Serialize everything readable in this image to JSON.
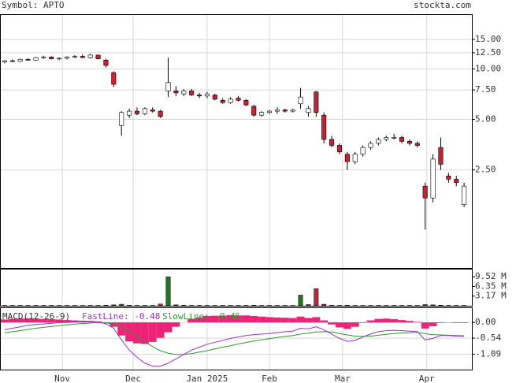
{
  "header": {
    "symbol": "Symbol: APTO",
    "site": "stockta.com"
  },
  "chart_data": {
    "type": "candlestick",
    "log_scale": true,
    "ylim": [
      0.65,
      21
    ],
    "yticks": [
      {
        "value": 15,
        "label": "15.00"
      },
      {
        "value": 12.5,
        "label": "12.50"
      },
      {
        "value": 10,
        "label": "10.00"
      },
      {
        "value": 7.5,
        "label": "7.50"
      },
      {
        "value": 5,
        "label": "5.00"
      },
      {
        "value": 2.5,
        "label": "2.50"
      }
    ],
    "xlim": [
      -0.5,
      60
    ],
    "xticks": [
      {
        "value": 7.4,
        "label": "Nov"
      },
      {
        "value": 16.5,
        "label": "Dec"
      },
      {
        "value": 26,
        "label": "Jan 2025"
      },
      {
        "value": 34,
        "label": "Feb"
      },
      {
        "value": 43.4,
        "label": "Mar"
      },
      {
        "value": 54.2,
        "label": "Apr"
      }
    ],
    "grid": true,
    "up_color": "#ffffff",
    "down_color": "#cc1f2f",
    "open": [
      11.0,
      11.2,
      11.1,
      11.4,
      11.3,
      11.7,
      11.8,
      11.5,
      11.6,
      11.8,
      11.9,
      11.7,
      12.1,
      11.3,
      9.5,
      4.6,
      5.3,
      5.6,
      5.4,
      5.7,
      5.6,
      7.4,
      7.4,
      7.1,
      7.4,
      7.0,
      6.9,
      7.0,
      6.5,
      6.3,
      6.7,
      6.5,
      6.0,
      5.3,
      5.5,
      5.6,
      5.7,
      5.6,
      6.2,
      5.5,
      7.3,
      5.3,
      3.8,
      3.5,
      3.1,
      2.8,
      3.1,
      3.4,
      3.6,
      3.8,
      3.9,
      3.9,
      3.7,
      3.6,
      2.0,
      1.7,
      3.4,
      2.3,
      2.2,
      1.55
    ],
    "high": [
      11.3,
      11.4,
      11.5,
      11.6,
      11.8,
      12.0,
      11.9,
      11.7,
      11.9,
      12.1,
      12.2,
      12.3,
      12.2,
      11.5,
      9.7,
      5.6,
      5.8,
      5.9,
      5.9,
      5.9,
      5.7,
      11.7,
      7.9,
      7.6,
      7.6,
      7.2,
      7.3,
      7.1,
      6.7,
      6.8,
      6.9,
      6.6,
      6.1,
      5.6,
      5.7,
      5.9,
      5.8,
      5.8,
      7.7,
      6.0,
      7.4,
      5.5,
      4.0,
      3.6,
      3.2,
      3.2,
      3.5,
      3.7,
      3.9,
      4.0,
      4.1,
      4.0,
      3.8,
      3.7,
      2.1,
      3.1,
      3.9,
      2.4,
      2.3,
      2.1
    ],
    "low": [
      10.8,
      11.0,
      11.0,
      11.2,
      11.2,
      11.5,
      11.4,
      11.3,
      11.4,
      11.6,
      11.6,
      11.5,
      11.4,
      10.2,
      7.8,
      4.0,
      5.1,
      5.3,
      5.3,
      5.5,
      5.1,
      6.8,
      6.9,
      6.9,
      6.9,
      6.7,
      6.7,
      6.5,
      6.2,
      6.2,
      6.4,
      6.0,
      5.2,
      5.2,
      5.4,
      5.4,
      5.5,
      5.5,
      5.8,
      5.2,
      5.2,
      3.6,
      3.4,
      3.1,
      2.5,
      2.7,
      3.0,
      3.3,
      3.5,
      3.7,
      3.8,
      3.6,
      3.5,
      3.4,
      1.1,
      1.6,
      2.5,
      2.1,
      2.0,
      1.5
    ],
    "close": [
      11.2,
      11.1,
      11.4,
      11.3,
      11.7,
      11.8,
      11.5,
      11.6,
      11.8,
      11.9,
      11.7,
      12.1,
      11.5,
      10.5,
      8.1,
      5.5,
      5.6,
      5.4,
      5.8,
      5.6,
      5.2,
      8.3,
      7.2,
      7.4,
      7.0,
      6.9,
      7.1,
      6.6,
      6.3,
      6.6,
      6.5,
      6.1,
      5.3,
      5.5,
      5.6,
      5.7,
      5.6,
      5.7,
      6.8,
      5.8,
      5.5,
      3.8,
      3.5,
      3.2,
      2.8,
      3.1,
      3.4,
      3.6,
      3.8,
      3.9,
      3.9,
      3.7,
      3.6,
      3.5,
      1.7,
      2.9,
      2.7,
      2.2,
      2.1,
      2.0
    ],
    "volume": {
      "up_color": "#1a7a1a",
      "down_color": "#cc1f2f",
      "ylim": [
        0,
        11900000
      ],
      "yticks": [
        {
          "value": 9520000,
          "label": "9.52 M"
        },
        {
          "value": 6350000,
          "label": "6.35 M"
        },
        {
          "value": 3170000,
          "label": "3.17 M"
        }
      ],
      "values": [
        100000,
        100000,
        100000,
        100000,
        100000,
        100000,
        100000,
        100000,
        100000,
        100000,
        100000,
        100000,
        100000,
        150000,
        300000,
        500000,
        150000,
        100000,
        100000,
        100000,
        600000,
        9500000,
        300000,
        150000,
        100000,
        100000,
        100000,
        100000,
        100000,
        100000,
        100000,
        100000,
        150000,
        100000,
        100000,
        100000,
        100000,
        100000,
        3500000,
        400000,
        5600000,
        500000,
        150000,
        100000,
        150000,
        100000,
        100000,
        100000,
        100000,
        100000,
        100000,
        100000,
        100000,
        100000,
        400000,
        300000,
        200000,
        100000,
        100000,
        100000
      ]
    },
    "macd": {
      "title": "MACD(12-26-9)",
      "fast_label": "FastLine: -0.48",
      "slow_label": "SlowLine: -0.46",
      "fast_color": "#9933cc",
      "slow_color": "#2e9a2e",
      "hist_color": "#ee2277",
      "ylim": [
        -1.62,
        0.49
      ],
      "yticks": [
        {
          "value": 0,
          "label": "0.00"
        },
        {
          "value": -0.54,
          "label": "-0.54"
        },
        {
          "value": -1.09,
          "label": "-1.09"
        }
      ],
      "fast": [
        -0.25,
        -0.2,
        -0.15,
        -0.1,
        -0.07,
        -0.05,
        -0.03,
        -0.01,
        0.0,
        0.01,
        0.02,
        0.03,
        0.02,
        -0.05,
        -0.2,
        -0.6,
        -0.95,
        -1.2,
        -1.4,
        -1.5,
        -1.5,
        -1.4,
        -1.25,
        -1.1,
        -0.95,
        -0.85,
        -0.75,
        -0.68,
        -0.62,
        -0.55,
        -0.5,
        -0.45,
        -0.42,
        -0.4,
        -0.38,
        -0.35,
        -0.32,
        -0.3,
        -0.2,
        -0.22,
        -0.15,
        -0.25,
        -0.4,
        -0.55,
        -0.65,
        -0.62,
        -0.5,
        -0.4,
        -0.32,
        -0.28,
        -0.27,
        -0.28,
        -0.3,
        -0.32,
        -0.6,
        -0.55,
        -0.45,
        -0.45,
        -0.47,
        -0.48
      ],
      "slow": [
        -0.35,
        -0.32,
        -0.28,
        -0.24,
        -0.2,
        -0.17,
        -0.14,
        -0.11,
        -0.08,
        -0.06,
        -0.04,
        -0.02,
        -0.01,
        -0.02,
        -0.05,
        -0.15,
        -0.3,
        -0.48,
        -0.66,
        -0.83,
        -0.97,
        -1.06,
        -1.1,
        -1.1,
        -1.07,
        -1.02,
        -0.97,
        -0.91,
        -0.85,
        -0.8,
        -0.74,
        -0.69,
        -0.64,
        -0.6,
        -0.56,
        -0.52,
        -0.48,
        -0.45,
        -0.4,
        -0.37,
        -0.33,
        -0.32,
        -0.33,
        -0.38,
        -0.43,
        -0.47,
        -0.48,
        -0.47,
        -0.44,
        -0.41,
        -0.38,
        -0.36,
        -0.35,
        -0.34,
        -0.39,
        -0.42,
        -0.43,
        -0.44,
        -0.45,
        -0.46
      ],
      "hist": [
        0.1,
        0.12,
        0.13,
        0.14,
        0.13,
        0.12,
        0.11,
        0.1,
        0.08,
        0.07,
        0.06,
        0.05,
        0.03,
        -0.03,
        -0.15,
        -0.45,
        -0.65,
        -0.72,
        -0.74,
        -0.67,
        -0.53,
        -0.34,
        -0.15,
        0.0,
        0.12,
        0.17,
        0.22,
        0.23,
        0.23,
        0.25,
        0.24,
        0.24,
        0.22,
        0.2,
        0.18,
        0.17,
        0.16,
        0.15,
        0.2,
        0.15,
        0.18,
        0.07,
        -0.07,
        -0.17,
        -0.22,
        -0.15,
        -0.02,
        0.07,
        0.12,
        0.13,
        0.11,
        0.08,
        0.05,
        0.02,
        -0.21,
        -0.13,
        -0.02,
        -0.01,
        -0.02,
        -0.02
      ]
    }
  }
}
